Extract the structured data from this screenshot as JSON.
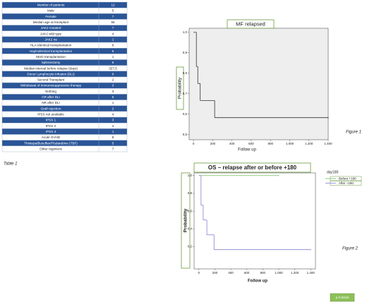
{
  "table": {
    "caption": "Table 1",
    "rows": [
      [
        "Number of patients",
        12
      ],
      [
        "Male",
        5
      ],
      [
        "Female",
        7
      ],
      [
        "Median age at transplant",
        55
      ],
      [
        "JAK2 mutated",
        7
      ],
      [
        "JAK2 wild type",
        4
      ],
      [
        "JAK2 na",
        1
      ],
      [
        "HLA-identical transplantation",
        6
      ],
      [
        "Haploidentical transplantation",
        5
      ],
      [
        "MUD transplantation",
        1
      ],
      [
        "Splenectomy",
        6
      ],
      [
        "Median interval before relapse (days)",
        "327,5"
      ],
      [
        "Donor Lymphocyte Infusion (DLI)",
        6
      ],
      [
        "Second Transplant",
        2
      ],
      [
        "Withdrawal of immunosuppressive therapy",
        3
      ],
      [
        "Nothing",
        3
      ],
      [
        "CR after DLI",
        5
      ],
      [
        "NR after DLI",
        1
      ],
      [
        "Graft rejection",
        2
      ],
      [
        "IPSS not available",
        4
      ],
      [
        "IPSS 1",
        3
      ],
      [
        "IPSS 2",
        4
      ],
      [
        "IPSS 3",
        1
      ],
      [
        "Acute GVHD",
        8
      ],
      [
        "Thiotepa/Busulfan/Fludarabine (TBF)",
        5
      ],
      [
        "Other regimens",
        7
      ]
    ]
  },
  "figures": [
    {
      "type": "step",
      "title": "MF relapsed",
      "caption": "Figure 1",
      "x_label": "Follow up",
      "y_label": "Probability",
      "xlim": [
        -45,
        1400
      ],
      "ylim": [
        0.475,
        1.02
      ],
      "xticks": [
        0,
        200,
        400,
        600,
        800,
        {
          "value": 1000,
          "label": "1.000"
        },
        {
          "value": 1200,
          "label": "1.200"
        },
        {
          "value": 1400,
          "label": "1.400"
        }
      ],
      "yticks": [
        {
          "value": 0.5,
          "label": "0,5"
        },
        {
          "value": 0.6,
          "label": "0,6"
        },
        {
          "value": 0.7,
          "label": "0,7"
        },
        {
          "value": 0.8,
          "label": "0,8"
        },
        {
          "value": 0.9,
          "label": "0,9"
        },
        {
          "value": 1.0,
          "label": "1,0"
        }
      ],
      "series": [
        {
          "color": "#333333",
          "x": [
            0,
            30,
            45,
            70,
            220,
            1400
          ],
          "values": [
            1,
            0.833,
            0.75,
            0.667,
            0.583,
            0.583
          ]
        }
      ]
    },
    {
      "type": "step",
      "title": "OS – relapse after or before +180",
      "caption": "Figure 2",
      "x_label": "Follow up",
      "y_label": "Probability",
      "legend_title": "day180",
      "annotation": "p 0.0015",
      "xlim": [
        -60,
        1460
      ],
      "ylim": [
        -0.05,
        1.03
      ],
      "xticks": [
        0,
        200,
        400,
        600,
        800,
        {
          "value": 1000,
          "label": "1.000"
        },
        {
          "value": 1200,
          "label": "1.200"
        },
        {
          "value": 1400,
          "label": "1.400"
        }
      ],
      "yticks": [
        {
          "value": 0.2,
          "label": "0,2"
        },
        {
          "value": 0.4,
          "label": "0,4"
        },
        {
          "value": 0.6,
          "label": "0,6"
        },
        {
          "value": 0.8,
          "label": "0,8"
        },
        {
          "value": 1.0,
          "label": "1,0"
        }
      ],
      "series": [
        {
          "name": "Before +180",
          "color": "#6fbf5a",
          "x": [
            0,
            1000
          ],
          "values": [
            1,
            1
          ]
        },
        {
          "name": "After +180",
          "color": "#8080d0",
          "x": [
            0,
            27,
            54,
            100,
            190,
            1400
          ],
          "values": [
            1,
            0.667,
            0.5,
            0.333,
            0.167,
            0.167
          ]
        }
      ]
    }
  ]
}
